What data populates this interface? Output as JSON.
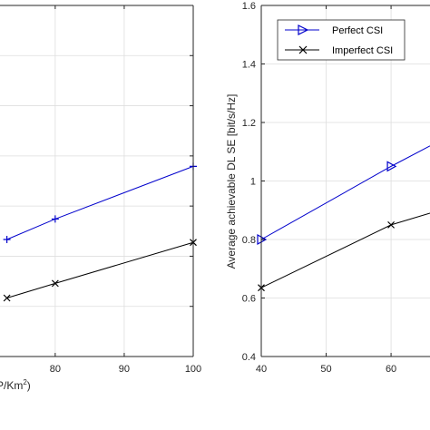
{
  "chart_data": [
    {
      "type": "line",
      "title": "",
      "xlabel": "P/Km",
      "xlabel_sup": "2",
      "ylabel": "",
      "xlim": [
        72,
        100
      ],
      "xticks": [
        80,
        90,
        100
      ],
      "grid": true,
      "series": [
        {
          "name": "",
          "color": "#0000cc",
          "marker": "plus",
          "x": [
            73,
            80,
            100
          ],
          "y": [
            0.8,
            0.87,
            1.05
          ]
        },
        {
          "name": "",
          "color": "#000000",
          "marker": "x",
          "x": [
            73,
            80,
            100
          ],
          "y": [
            0.6,
            0.65,
            0.79
          ]
        }
      ]
    },
    {
      "type": "line",
      "title": "",
      "xlabel": "",
      "ylabel": "Average achievable DL SE [bit/s/Hz]",
      "xlim": [
        40,
        66
      ],
      "ylim": [
        0.4,
        1.6
      ],
      "xticks": [
        40,
        50,
        60
      ],
      "yticks": [
        0.4,
        0.6,
        0.8,
        1,
        1.2,
        1.4,
        1.6
      ],
      "ytick_labels": [
        "0.4",
        "0.6",
        "0.8",
        "1",
        "1.2",
        "1.4",
        "1.6"
      ],
      "grid": true,
      "legend": "top-left",
      "series": [
        {
          "name": "Perfect CSI",
          "color": "#0000cc",
          "marker": "triangle-right",
          "x": [
            40,
            60,
            66
          ],
          "y": [
            0.8,
            1.05,
            1.12
          ]
        },
        {
          "name": "Imperfect CSI",
          "color": "#000000",
          "marker": "x",
          "x": [
            40,
            60,
            66
          ],
          "y": [
            0.635,
            0.85,
            0.89
          ]
        }
      ]
    }
  ]
}
